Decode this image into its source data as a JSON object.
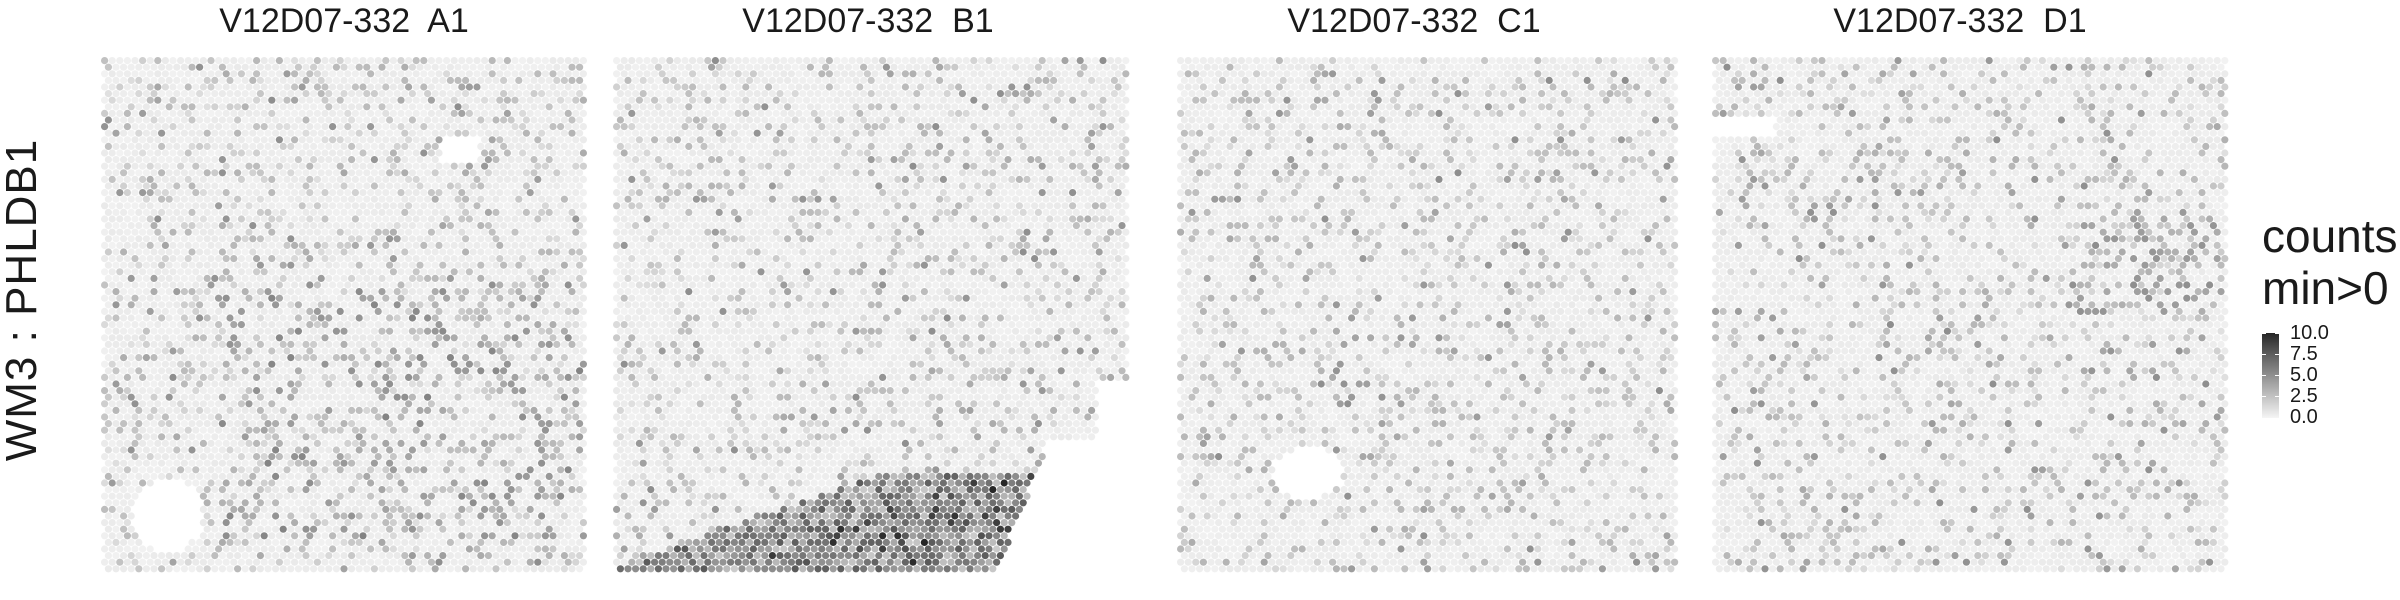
{
  "figure": {
    "y_axis_label": "WM3 : PHLDB1"
  },
  "panels": [
    {
      "title": "V12D07-332  A1"
    },
    {
      "title": "V12D07-332  B1"
    },
    {
      "title": "V12D07-332  C1"
    },
    {
      "title": "V12D07-332  D1"
    }
  ],
  "legend": {
    "title_line1": "counts",
    "title_line2": "min>0",
    "ticks": [
      "10.0",
      "7.5",
      "5.0",
      "2.5",
      "0.0"
    ]
  },
  "colors": {
    "low": "#f5f5f5",
    "high": "#262626",
    "background": "#ffffff"
  },
  "chart_data": {
    "type": "heatmap",
    "subtype": "spatial spot map (Visium hex grid)",
    "ylabel": "WM3 : PHLDB1",
    "color_scale": {
      "label": "counts min>0",
      "min": 0.0,
      "max": 10.0,
      "ticks": [
        0.0,
        2.5,
        5.0,
        7.5,
        10.0
      ],
      "low_color": "#f5f5f5",
      "high_color": "#262626"
    },
    "panels": [
      {
        "sample": "V12D07-332  A1",
        "typical_count": 1.5,
        "max_count": 6.5,
        "pattern": "scattered low counts throughout; denser in lower-middle region"
      },
      {
        "sample": "V12D07-332  B1",
        "typical_count": 1.0,
        "max_count": 10.0,
        "pattern": "low background; high-count band along bottom edge"
      },
      {
        "sample": "V12D07-332  C1",
        "typical_count": 1.0,
        "max_count": 8.5,
        "pattern": "scattered low counts throughout"
      },
      {
        "sample": "V12D07-332  D1",
        "typical_count": 1.0,
        "max_count": 6.0,
        "pattern": "scattered low counts; moderate patch on right-middle"
      }
    ],
    "grid": false,
    "legend_position": "right"
  }
}
